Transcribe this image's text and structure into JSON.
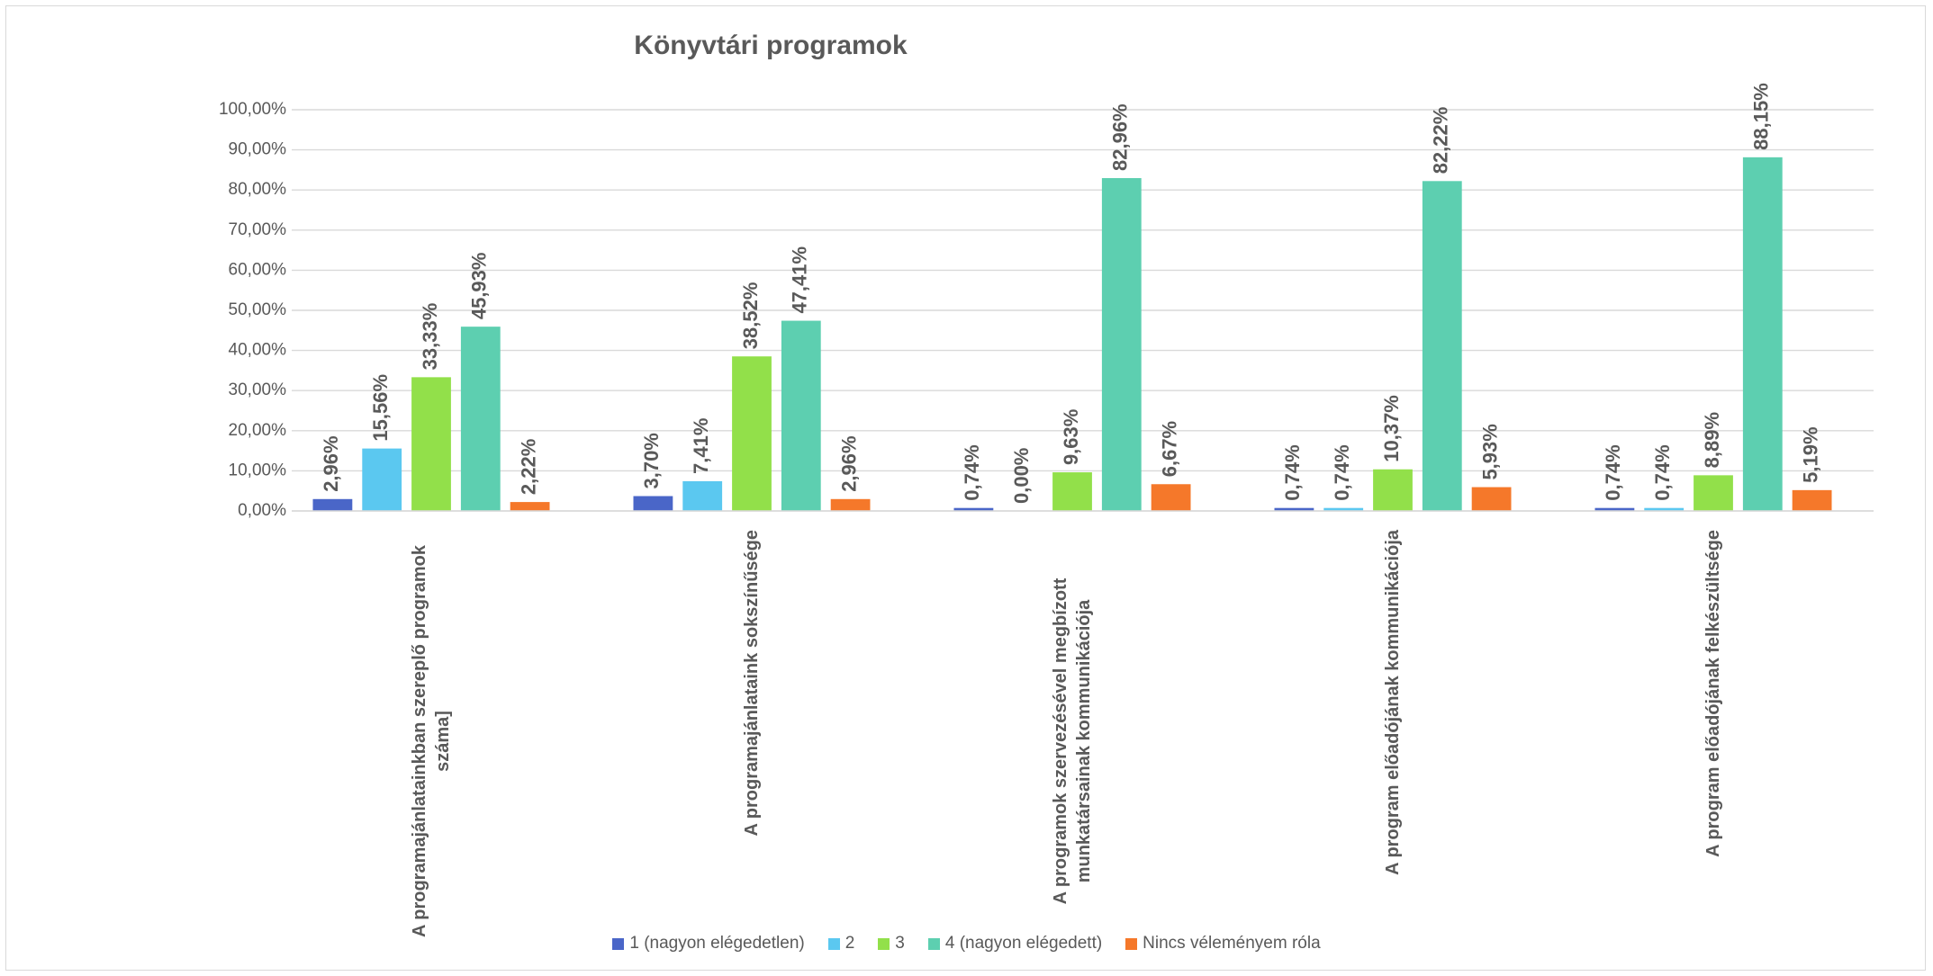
{
  "chart_data": {
    "type": "bar",
    "title": "Könyvtári programok",
    "categories": [
      "A programajánlatainkban szereplő programok száma]",
      "A programajánlataink sokszínűsége",
      "A programok szervezésével megbízott munkatársainak kommunikációja",
      "A program előadójának kommunikációja",
      "A program előadójának felkészültsége"
    ],
    "series": [
      {
        "name": "1 (nagyon elégedetlen)",
        "color": "#4a66c8",
        "values": [
          2.96,
          3.7,
          0.74,
          0.74,
          0.74
        ],
        "value_labels": [
          "2,96%",
          "3,70%",
          "0,74%",
          "0,74%",
          "0,74%"
        ]
      },
      {
        "name": "2",
        "color": "#5bc8f0",
        "values": [
          15.56,
          7.41,
          0.0,
          0.74,
          0.74
        ],
        "value_labels": [
          "15,56%",
          "7,41%",
          "0,00%",
          "0,74%",
          "0,74%"
        ]
      },
      {
        "name": "3",
        "color": "#92e04a",
        "values": [
          33.33,
          38.52,
          9.63,
          10.37,
          8.89
        ],
        "value_labels": [
          "33,33%",
          "38,52%",
          "9,63%",
          "10,37%",
          "8,89%"
        ]
      },
      {
        "name": "4 (nagyon elégedett)",
        "color": "#5dcfb0",
        "values": [
          45.93,
          47.41,
          82.96,
          82.22,
          88.15
        ],
        "value_labels": [
          "45,93%",
          "47,41%",
          "82,96%",
          "82,22%",
          "88,15%"
        ]
      },
      {
        "name": "Nincs véleményem róla",
        "color": "#f5782a",
        "values": [
          2.22,
          2.96,
          6.67,
          5.93,
          5.19
        ],
        "value_labels": [
          "2,22%",
          "2,96%",
          "6,67%",
          "5,93%",
          "5,19%"
        ]
      }
    ],
    "ylim": [
      0,
      100
    ],
    "yticks": [
      {
        "value": 0,
        "label": "0,00%"
      },
      {
        "value": 10,
        "label": "10,00%"
      },
      {
        "value": 20,
        "label": "20,00%"
      },
      {
        "value": 30,
        "label": "30,00%"
      },
      {
        "value": 40,
        "label": "40,00%"
      },
      {
        "value": 50,
        "label": "50,00%"
      },
      {
        "value": 60,
        "label": "60,00%"
      },
      {
        "value": 70,
        "label": "70,00%"
      },
      {
        "value": 80,
        "label": "80,00%"
      },
      {
        "value": 90,
        "label": "90,00%"
      },
      {
        "value": 100,
        "label": "100,00%"
      }
    ],
    "grid": true,
    "legend": "bottom"
  }
}
